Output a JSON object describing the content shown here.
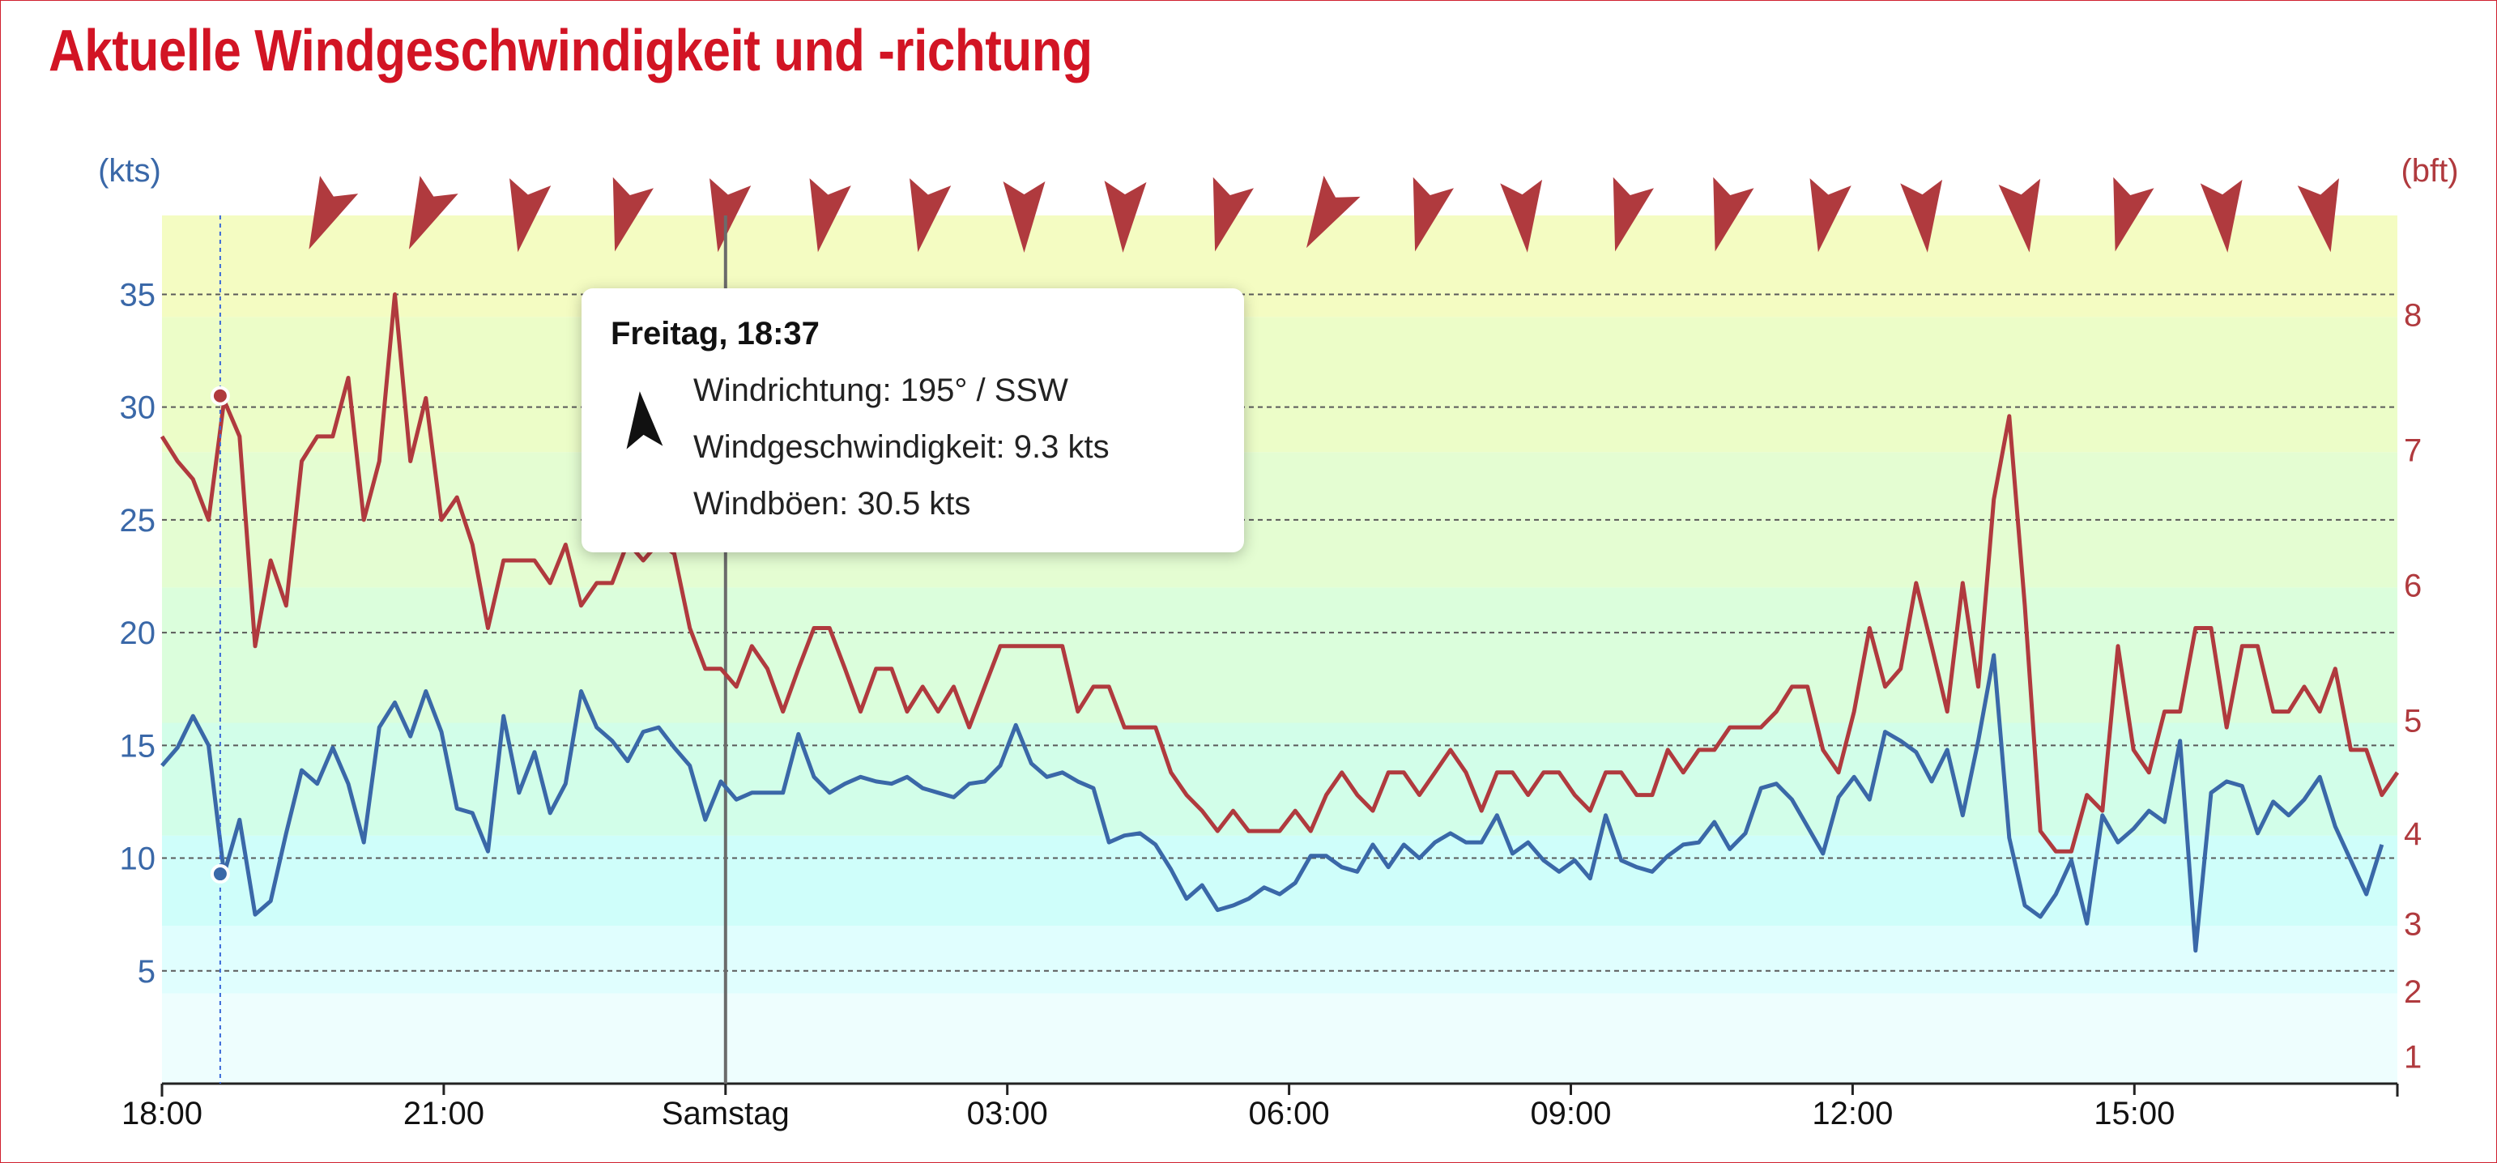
{
  "header": {
    "title": "Aktuelle Windgeschwindigkeit und -richtung"
  },
  "tooltip": {
    "title": "Freitag, 18:37",
    "direction": "Windrichtung: 195° / SSW",
    "speed": "Windgeschwindigkeit: 9.3 kts",
    "gusts": "Windböen: 30.5 kts",
    "direction_deg": 195
  },
  "colors": {
    "speed_line": "#3a68a8",
    "gust_line": "#b03a3e",
    "title": "#d21424",
    "band_colors": [
      "#eefefe",
      "#e0fefe",
      "#cffefa",
      "#d2fee9",
      "#dbfedc",
      "#e4fdd2",
      "#ecfdc8",
      "#f4fcc2",
      "#fbfcc4"
    ]
  },
  "chart_data": {
    "type": "line",
    "yunit_left": "(kts)",
    "yunit_right": "(bft)",
    "ylim": [
      0,
      38.5
    ],
    "xlim_hours": [
      0,
      23.8
    ],
    "yticks_left": [
      "5",
      "10",
      "15",
      "20",
      "25",
      "30",
      "35"
    ],
    "yticks_right": [
      {
        "label": "1",
        "kts": 1.2
      },
      {
        "label": "2",
        "kts": 4.1
      },
      {
        "label": "3",
        "kts": 7.1
      },
      {
        "label": "4",
        "kts": 11.1
      },
      {
        "label": "5",
        "kts": 16.1
      },
      {
        "label": "6",
        "kts": 22.1
      },
      {
        "label": "7",
        "kts": 28.1
      },
      {
        "label": "8",
        "kts": 34.1
      }
    ],
    "bands_kts": [
      0,
      4,
      7,
      11,
      16,
      22,
      28,
      34,
      38.5
    ],
    "xticks": [
      {
        "label": "18:00",
        "h": 0
      },
      {
        "label": "21:00",
        "h": 3
      },
      {
        "label": "Samstag",
        "h": 6
      },
      {
        "label": "03:00",
        "h": 9
      },
      {
        "label": "06:00",
        "h": 12
      },
      {
        "label": "09:00",
        "h": 15
      },
      {
        "label": "12:00",
        "h": 18
      },
      {
        "label": "15:00",
        "h": 21
      }
    ],
    "day_marker_h": 6,
    "cursor_h": 0.62,
    "cursor_values": {
      "speed": 9.3,
      "gust": 30.5
    },
    "grid": true,
    "series": [
      {
        "key": "gust",
        "values": [
          28.7,
          27.6,
          26.8,
          25,
          30.3,
          28.7,
          19.4,
          23.2,
          21.2,
          27.6,
          28.7,
          28.7,
          31.3,
          25,
          27.6,
          35,
          27.6,
          30.4,
          25,
          26,
          23.9,
          20.2,
          23.2,
          23.2,
          23.2,
          22.2,
          23.9,
          21.2,
          22.2,
          22.2,
          24,
          23.2,
          24,
          23.5,
          20.2,
          18.4,
          18.4,
          17.6,
          19.4,
          18.4,
          16.5,
          18.4,
          20.2,
          20.2,
          18.4,
          16.5,
          18.4,
          18.4,
          16.5,
          17.6,
          16.5,
          17.6,
          15.8,
          17.6,
          19.4,
          19.4,
          19.4,
          19.4,
          19.4,
          16.5,
          17.6,
          17.6,
          15.8,
          15.8,
          15.8,
          13.8,
          12.8,
          12.1,
          11.2,
          12.1,
          11.2,
          11.2,
          11.2,
          12.1,
          11.2,
          12.8,
          13.8,
          12.8,
          12.1,
          13.8,
          13.8,
          12.8,
          13.8,
          14.8,
          13.8,
          12.1,
          13.8,
          13.8,
          12.8,
          13.8,
          13.8,
          12.8,
          12.1,
          13.8,
          13.8,
          12.8,
          12.8,
          14.8,
          13.8,
          14.8,
          14.8,
          15.8,
          15.8,
          15.8,
          16.5,
          17.6,
          17.6,
          14.8,
          13.8,
          16.5,
          20.2,
          17.6,
          18.4,
          22.2,
          19.4,
          16.5,
          22.2,
          17.6,
          25.9,
          29.6,
          21.2,
          11.2,
          10.3,
          10.3,
          12.8,
          12.1,
          19.4,
          14.8,
          13.8,
          16.5,
          16.5,
          20.2,
          20.2,
          15.8,
          19.4,
          19.4,
          16.5,
          16.5,
          17.6,
          16.5,
          18.4,
          14.8,
          14.8,
          12.8,
          13.8
        ]
      },
      {
        "key": "speed",
        "values": [
          14.1,
          14.9,
          16.3,
          15,
          9.3,
          11.7,
          7.5,
          8.1,
          11.1,
          13.9,
          13.3,
          14.9,
          13.3,
          10.7,
          15.8,
          16.9,
          15.4,
          17.4,
          15.6,
          12.2,
          12,
          10.3,
          16.3,
          12.9,
          14.7,
          12,
          13.3,
          17.4,
          15.8,
          15.2,
          14.3,
          15.6,
          15.8,
          14.9,
          14.1,
          11.7,
          13.4,
          12.6,
          12.9,
          12.9,
          12.9,
          15.5,
          13.6,
          12.9,
          13.3,
          13.6,
          13.4,
          13.3,
          13.6,
          13.1,
          12.9,
          12.7,
          13.3,
          13.4,
          14.1,
          15.9,
          14.2,
          13.6,
          13.8,
          13.4,
          13.1,
          10.7,
          11,
          11.1,
          10.6,
          9.5,
          8.2,
          8.8,
          7.7,
          7.9,
          8.2,
          8.7,
          8.4,
          8.9,
          10.1,
          10.1,
          9.6,
          9.4,
          10.6,
          9.6,
          10.6,
          10,
          10.7,
          11.1,
          10.7,
          10.7,
          11.9,
          10.2,
          10.7,
          9.9,
          9.4,
          9.9,
          9.1,
          11.9,
          9.9,
          9.6,
          9.4,
          10.1,
          10.6,
          10.7,
          11.6,
          10.4,
          11.1,
          13.1,
          13.3,
          12.6,
          11.4,
          10.2,
          12.7,
          13.6,
          12.6,
          15.6,
          15.2,
          14.7,
          13.4,
          14.8,
          11.9,
          15.2,
          19,
          10.9,
          7.9,
          7.4,
          8.4,
          9.9,
          7.1,
          11.9,
          10.7,
          11.3,
          12.1,
          11.6,
          15.2,
          5.9,
          12.9,
          13.4,
          13.2,
          11.1,
          12.5,
          11.9,
          12.6,
          13.6,
          11.4,
          9.9,
          8.4,
          10.6
        ]
      }
    ],
    "direction_arrows_deg": [
      205,
      205,
      190,
      195,
      190,
      190,
      190,
      180,
      182,
      195,
      210,
      195,
      175,
      195,
      195,
      190,
      175,
      172,
      195,
      175,
      170
    ]
  }
}
